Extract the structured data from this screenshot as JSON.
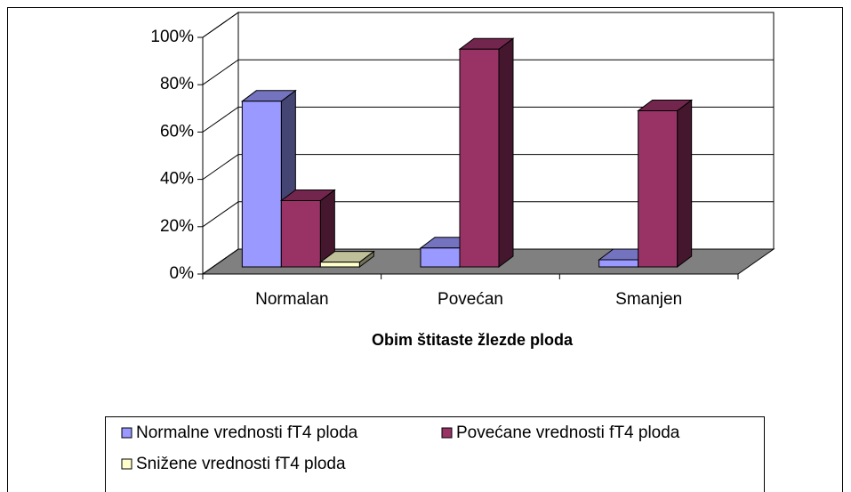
{
  "chart_data": {
    "type": "bar3d",
    "x_label": "Obim štitaste žlezde ploda",
    "categories": [
      "Normalan",
      "Povećan",
      "Smanjen"
    ],
    "series": [
      {
        "name": "Normalne vrednosti fT4 ploda",
        "color": "#9999ff",
        "values": [
          70,
          8,
          3
        ]
      },
      {
        "name": "Povećane vrednosti fT4 ploda",
        "color": "#993366",
        "values": [
          28,
          92,
          66
        ]
      },
      {
        "name": "Snižene vrednosti fT4 ploda",
        "color": "#ffffcc",
        "values": [
          2,
          null,
          null
        ]
      }
    ],
    "ylim": [
      0,
      100
    ],
    "yticks": [
      {
        "value": 0,
        "label": "0%"
      },
      {
        "value": 20,
        "label": "20%"
      },
      {
        "value": 40,
        "label": "40%"
      },
      {
        "value": 60,
        "label": "60%"
      },
      {
        "value": 80,
        "label": "80%"
      },
      {
        "value": 100,
        "label": "100%"
      }
    ],
    "grid": true,
    "legend": "bottom"
  }
}
